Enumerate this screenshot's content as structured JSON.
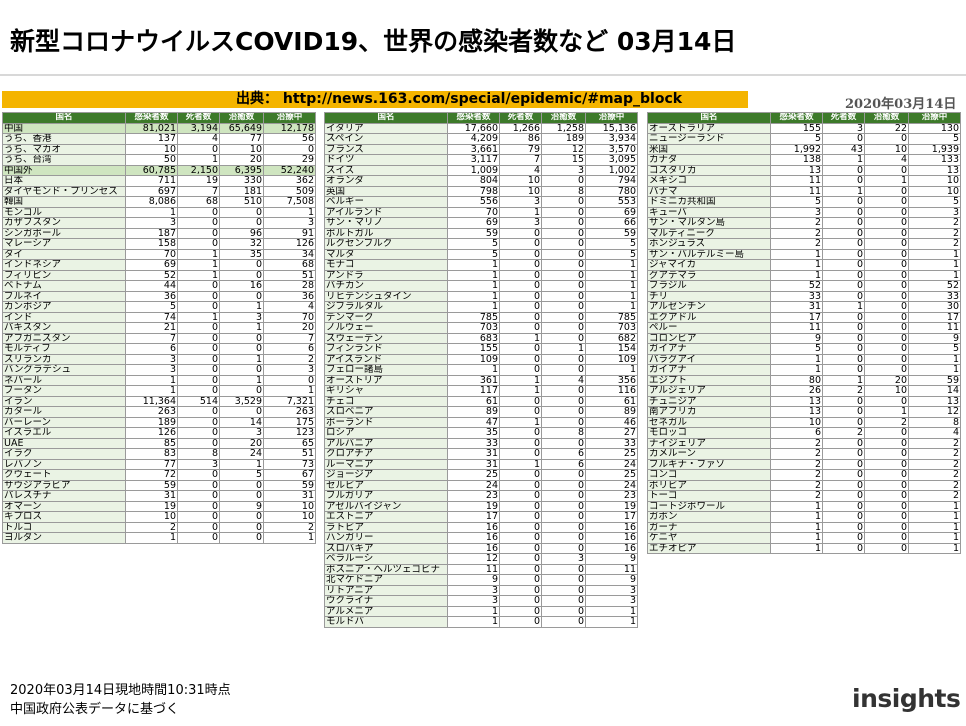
{
  "title": "新型コロナウイルスCOVID19、世界の感染者数など 03月14日",
  "source": "出典： http://news.163.com/special/epidemic/#map_block",
  "date": "2020年03月14日",
  "headers": [
    "国名",
    "感染者数",
    "死者数",
    "治癒数",
    "治療中"
  ],
  "table1": [
    [
      "中国",
      "81,021",
      "3,194",
      "65,649",
      "12,178"
    ],
    [
      "うち、香港",
      "137",
      "4",
      "77",
      "56"
    ],
    [
      "うち、マカオ",
      "10",
      "0",
      "10",
      "0"
    ],
    [
      "うち、台湾",
      "50",
      "1",
      "20",
      "29"
    ],
    [
      "中国外",
      "60,785",
      "2,150",
      "6,395",
      "52,240"
    ],
    [
      "日本",
      "711",
      "19",
      "330",
      "362"
    ],
    [
      "ダイヤモンド・プリンセス",
      "697",
      "7",
      "181",
      "509"
    ],
    [
      "韓国",
      "8,086",
      "68",
      "510",
      "7,508"
    ],
    [
      "モンゴル",
      "1",
      "0",
      "0",
      "1"
    ],
    [
      "カザフスタン",
      "3",
      "0",
      "0",
      "3"
    ],
    [
      "シンガポール",
      "187",
      "0",
      "96",
      "91"
    ],
    [
      "マレーシア",
      "158",
      "0",
      "32",
      "126"
    ],
    [
      "タイ",
      "70",
      "1",
      "35",
      "34"
    ],
    [
      "インドネシア",
      "69",
      "1",
      "0",
      "68"
    ],
    [
      "フィリピン",
      "52",
      "1",
      "0",
      "51"
    ],
    [
      "ベトナム",
      "44",
      "0",
      "16",
      "28"
    ],
    [
      "ブルネイ",
      "36",
      "0",
      "0",
      "36"
    ],
    [
      "カンボジア",
      "5",
      "0",
      "1",
      "4"
    ],
    [
      "インド",
      "74",
      "1",
      "3",
      "70"
    ],
    [
      "パキスタン",
      "21",
      "0",
      "1",
      "20"
    ],
    [
      "アフガニスタン",
      "7",
      "0",
      "0",
      "7"
    ],
    [
      "モルディブ",
      "6",
      "0",
      "0",
      "6"
    ],
    [
      "スリランカ",
      "3",
      "0",
      "1",
      "2"
    ],
    [
      "バングラデシュ",
      "3",
      "0",
      "0",
      "3"
    ],
    [
      "ネパール",
      "1",
      "0",
      "1",
      "0"
    ],
    [
      "ブータン",
      "1",
      "0",
      "0",
      "1"
    ],
    [
      "イラン",
      "11,364",
      "514",
      "3,529",
      "7,321"
    ],
    [
      "カタール",
      "263",
      "0",
      "0",
      "263"
    ],
    [
      "バーレーン",
      "189",
      "0",
      "14",
      "175"
    ],
    [
      "イスラエル",
      "126",
      "0",
      "3",
      "123"
    ],
    [
      "UAE",
      "85",
      "0",
      "20",
      "65"
    ],
    [
      "イラク",
      "83",
      "8",
      "24",
      "51"
    ],
    [
      "レバノン",
      "77",
      "3",
      "1",
      "73"
    ],
    [
      "クウェート",
      "72",
      "0",
      "5",
      "67"
    ],
    [
      "サウジアラビア",
      "59",
      "0",
      "0",
      "59"
    ],
    [
      "パレスチナ",
      "31",
      "0",
      "0",
      "31"
    ],
    [
      "オマーン",
      "19",
      "0",
      "9",
      "10"
    ],
    [
      "キプロス",
      "10",
      "0",
      "0",
      "10"
    ],
    [
      "トルコ",
      "2",
      "0",
      "0",
      "2"
    ],
    [
      "ヨルダン",
      "1",
      "0",
      "0",
      "1"
    ]
  ],
  "table2": [
    [
      "イタリア",
      "17,660",
      "1,266",
      "1,258",
      "15,136"
    ],
    [
      "スペイン",
      "4,209",
      "86",
      "189",
      "3,934"
    ],
    [
      "フランス",
      "3,661",
      "79",
      "12",
      "3,570"
    ],
    [
      "ドイツ",
      "3,117",
      "7",
      "15",
      "3,095"
    ],
    [
      "スイス",
      "1,009",
      "4",
      "3",
      "1,002"
    ],
    [
      "オランダ",
      "804",
      "10",
      "0",
      "794"
    ],
    [
      "英国",
      "798",
      "10",
      "8",
      "780"
    ],
    [
      "ベルギー",
      "556",
      "3",
      "0",
      "553"
    ],
    [
      "アイルランド",
      "70",
      "1",
      "0",
      "69"
    ],
    [
      "サン・マリノ",
      "69",
      "3",
      "0",
      "66"
    ],
    [
      "ポルトガル",
      "59",
      "0",
      "0",
      "59"
    ],
    [
      "ルクセンブルク",
      "5",
      "0",
      "0",
      "5"
    ],
    [
      "マルタ",
      "5",
      "0",
      "0",
      "5"
    ],
    [
      "モナコ",
      "1",
      "0",
      "0",
      "1"
    ],
    [
      "アンドラ",
      "1",
      "0",
      "0",
      "1"
    ],
    [
      "バチカン",
      "1",
      "0",
      "0",
      "1"
    ],
    [
      "リヒテンシュタイン",
      "1",
      "0",
      "0",
      "1"
    ],
    [
      "ジブラルタル",
      "1",
      "0",
      "0",
      "1"
    ],
    [
      "デンマーク",
      "785",
      "0",
      "0",
      "785"
    ],
    [
      "ノルウェー",
      "703",
      "0",
      "0",
      "703"
    ],
    [
      "スウェーデン",
      "683",
      "1",
      "0",
      "682"
    ],
    [
      "フィンランド",
      "155",
      "0",
      "1",
      "154"
    ],
    [
      "アイスランド",
      "109",
      "0",
      "0",
      "109"
    ],
    [
      "フェロー諸島",
      "1",
      "0",
      "0",
      "1"
    ],
    [
      "オーストリア",
      "361",
      "1",
      "4",
      "356"
    ],
    [
      "ギリシャ",
      "117",
      "1",
      "0",
      "116"
    ],
    [
      "チェコ",
      "61",
      "0",
      "0",
      "61"
    ],
    [
      "スロベニア",
      "89",
      "0",
      "0",
      "89"
    ],
    [
      "ポーランド",
      "47",
      "1",
      "0",
      "46"
    ],
    [
      "ロシア",
      "35",
      "0",
      "8",
      "27"
    ],
    [
      "アルバニア",
      "33",
      "0",
      "0",
      "33"
    ],
    [
      "クロアチア",
      "31",
      "0",
      "6",
      "25"
    ],
    [
      "ルーマニア",
      "31",
      "1",
      "6",
      "24"
    ],
    [
      "ジョージア",
      "25",
      "0",
      "0",
      "25"
    ],
    [
      "セルビア",
      "24",
      "0",
      "0",
      "24"
    ],
    [
      "ブルガリア",
      "23",
      "0",
      "0",
      "23"
    ],
    [
      "アゼルバイジャン",
      "19",
      "0",
      "0",
      "19"
    ],
    [
      "エストニア",
      "17",
      "0",
      "0",
      "17"
    ],
    [
      "ラトビア",
      "16",
      "0",
      "0",
      "16"
    ],
    [
      "ハンガリー",
      "16",
      "0",
      "0",
      "16"
    ],
    [
      "スロバキア",
      "16",
      "0",
      "0",
      "16"
    ],
    [
      "ベラルーシ",
      "12",
      "0",
      "3",
      "9"
    ],
    [
      "ボスニア・ヘルツェゴビナ",
      "11",
      "0",
      "0",
      "11"
    ],
    [
      "北マケドニア",
      "9",
      "0",
      "0",
      "9"
    ],
    [
      "リトアニア",
      "3",
      "0",
      "0",
      "3"
    ],
    [
      "ウクライナ",
      "3",
      "0",
      "0",
      "3"
    ],
    [
      "アルメニア",
      "1",
      "0",
      "0",
      "1"
    ],
    [
      "モルドバ",
      "1",
      "0",
      "0",
      "1"
    ]
  ],
  "table3": [
    [
      "オーストラリア",
      "155",
      "3",
      "22",
      "130"
    ],
    [
      "ニュージーランド",
      "5",
      "0",
      "0",
      "5"
    ],
    [
      "米国",
      "1,992",
      "43",
      "10",
      "1,939"
    ],
    [
      "カナダ",
      "138",
      "1",
      "4",
      "133"
    ],
    [
      "コスタリカ",
      "13",
      "0",
      "0",
      "13"
    ],
    [
      "メキシコ",
      "11",
      "0",
      "1",
      "10"
    ],
    [
      "パナマ",
      "11",
      "1",
      "0",
      "10"
    ],
    [
      "ドミニカ共和国",
      "5",
      "0",
      "0",
      "5"
    ],
    [
      "キューバ",
      "3",
      "0",
      "0",
      "3"
    ],
    [
      "サン・マルタン島",
      "2",
      "0",
      "0",
      "2"
    ],
    [
      "マルティニーク",
      "2",
      "0",
      "0",
      "2"
    ],
    [
      "ホンジュラス",
      "2",
      "0",
      "0",
      "2"
    ],
    [
      "サン・バルテルミー島",
      "1",
      "0",
      "0",
      "1"
    ],
    [
      "ジャマイカ",
      "1",
      "0",
      "0",
      "1"
    ],
    [
      "グアテマラ",
      "1",
      "0",
      "0",
      "1"
    ],
    [
      "ブラジル",
      "52",
      "0",
      "0",
      "52"
    ],
    [
      "チリ",
      "33",
      "0",
      "0",
      "33"
    ],
    [
      "アルゼンチン",
      "31",
      "1",
      "0",
      "30"
    ],
    [
      "エクアドル",
      "17",
      "0",
      "0",
      "17"
    ],
    [
      "ペルー",
      "11",
      "0",
      "0",
      "11"
    ],
    [
      "コロンビア",
      "9",
      "0",
      "0",
      "9"
    ],
    [
      "ガイアナ",
      "5",
      "0",
      "0",
      "5"
    ],
    [
      "パラグアイ",
      "1",
      "0",
      "0",
      "1"
    ],
    [
      "ガイアナ",
      "1",
      "0",
      "0",
      "1"
    ],
    [
      "エジプト",
      "80",
      "1",
      "20",
      "59"
    ],
    [
      "アルジェリア",
      "26",
      "2",
      "10",
      "14"
    ],
    [
      "チュニジア",
      "13",
      "0",
      "0",
      "13"
    ],
    [
      "南アフリカ",
      "13",
      "0",
      "1",
      "12"
    ],
    [
      "セネガル",
      "10",
      "0",
      "2",
      "8"
    ],
    [
      "モロッコ",
      "6",
      "2",
      "0",
      "4"
    ],
    [
      "ナイジェリア",
      "2",
      "0",
      "0",
      "2"
    ],
    [
      "カメルーン",
      "2",
      "0",
      "0",
      "2"
    ],
    [
      "ブルキナ・ファソ",
      "2",
      "0",
      "0",
      "2"
    ],
    [
      "コンゴ",
      "2",
      "0",
      "0",
      "2"
    ],
    [
      "ボリビア",
      "2",
      "0",
      "0",
      "2"
    ],
    [
      "トーゴ",
      "2",
      "0",
      "0",
      "2"
    ],
    [
      "コートジボワール",
      "1",
      "0",
      "0",
      "1"
    ],
    [
      "ガボン",
      "1",
      "0",
      "0",
      "1"
    ],
    [
      "ガーナ",
      "1",
      "0",
      "0",
      "1"
    ],
    [
      "ケニヤ",
      "1",
      "0",
      "0",
      "1"
    ],
    [
      "エチオピア",
      "1",
      "0",
      "0",
      "1"
    ]
  ],
  "footer": {
    "line1": "2020年03月14日現地時間10:31時点",
    "line2": "中国政府公表データに基づく"
  },
  "logo": {
    "text": "insights",
    "accent_color": "#f0a000"
  },
  "colors": {
    "header_green": "#3d7a2a",
    "name_cell": "#eaf3e4",
    "highlight": "#cfe5c0",
    "source_band": "#f4b400"
  }
}
